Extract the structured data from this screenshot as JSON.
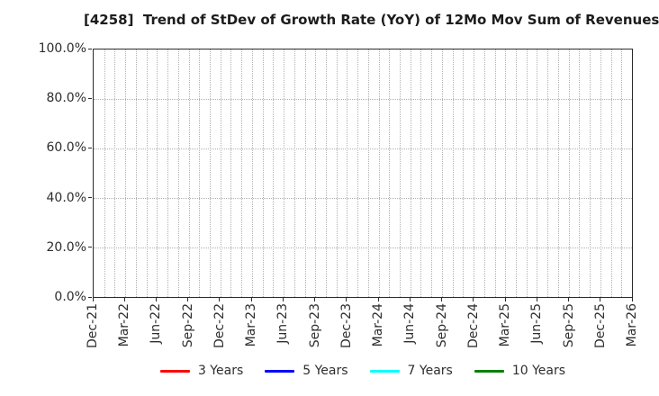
{
  "chart_data": {
    "type": "line",
    "title": "[4258]  Trend of StDev of Growth Rate (YoY) of 12Mo Mov Sum of Revenues",
    "x_axis": {
      "tick_labels": [
        "Dec-21",
        "Mar-22",
        "Jun-22",
        "Sep-22",
        "Dec-22",
        "Mar-23",
        "Jun-23",
        "Sep-23",
        "Dec-23",
        "Mar-24",
        "Jun-24",
        "Sep-24",
        "Dec-24",
        "Mar-25",
        "Jun-25",
        "Sep-25",
        "Dec-25",
        "Mar-26"
      ],
      "months_between_labels": 3,
      "total_month_gridlines": 52,
      "label_rotation_deg": 90
    },
    "y_axis": {
      "tick_labels": [
        "0.0%",
        "20.0%",
        "40.0%",
        "60.0%",
        "80.0%",
        "100.0%"
      ],
      "min": 0,
      "max": 100,
      "unit": "%",
      "gridline_percents": [
        20,
        40,
        60,
        80
      ]
    },
    "series": [
      {
        "name": "3 Years",
        "color": "#ff0000",
        "values": []
      },
      {
        "name": "5 Years",
        "color": "#0000ff",
        "values": []
      },
      {
        "name": "7 Years",
        "color": "#00ffff",
        "values": []
      },
      {
        "name": "10 Years",
        "color": "#008000",
        "values": []
      }
    ],
    "legend": {
      "position": "bottom-center",
      "frame": false
    },
    "grid": {
      "style": "dotted",
      "color": "#b0b0b0"
    },
    "plot_note": "empty plot - no series data points are drawn"
  },
  "colors": {
    "background": "#ffffff",
    "spine": "#2b2b2b",
    "tick_text": "#2e2e2e",
    "title_text": "#1c1c1c",
    "grid": "#b0b0b0"
  }
}
